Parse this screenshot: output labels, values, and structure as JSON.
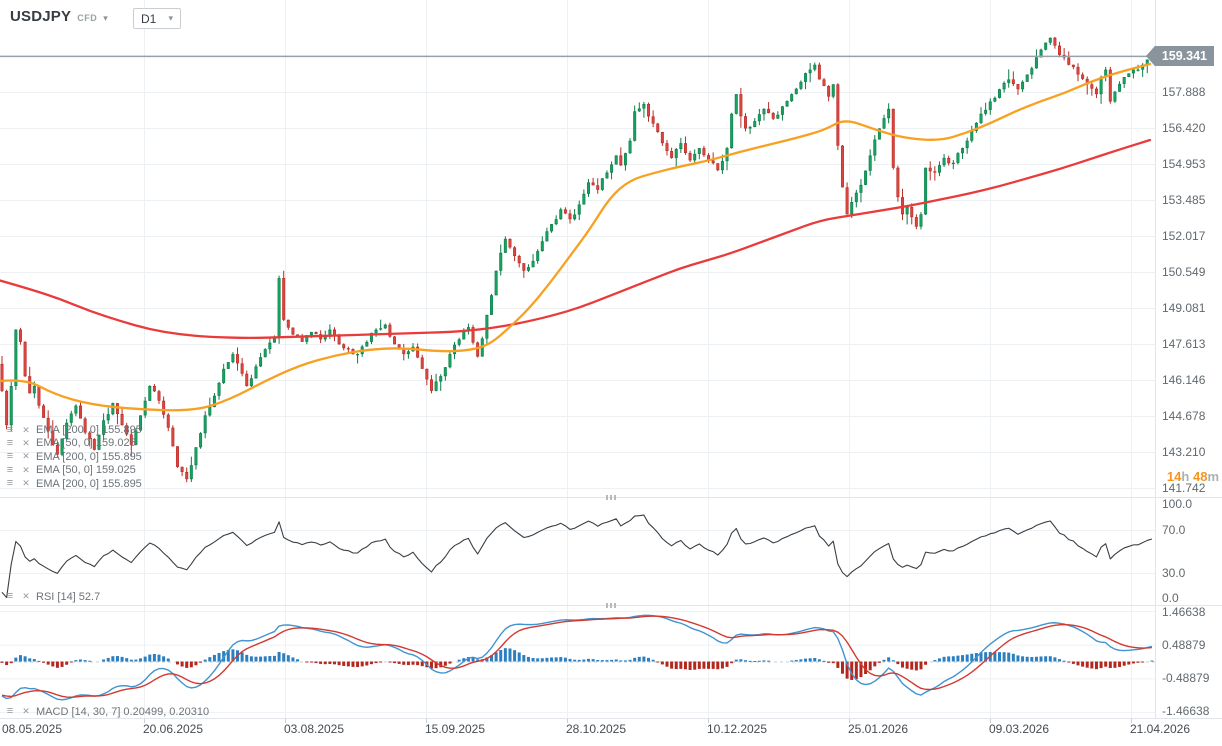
{
  "symbol": {
    "name": "USDJPY",
    "market": "CFD"
  },
  "timeframe": {
    "selected": "D1"
  },
  "icons": {
    "settings": "≡",
    "close": "✕",
    "chevron": "▾"
  },
  "price_axis": {
    "current_price": "159.341",
    "labels": [
      "157.888",
      "156.420",
      "154.953",
      "153.485",
      "152.017",
      "150.549",
      "149.081",
      "147.613",
      "146.146",
      "144.678",
      "143.210",
      "141.742"
    ]
  },
  "rsi_axis": {
    "labels": [
      "100.0",
      "70.0",
      "30.0",
      "0.0"
    ]
  },
  "macd_axis": {
    "labels": [
      "1.46638",
      "0.48879",
      "-0.48879",
      "-1.46638"
    ]
  },
  "date_axis": {
    "labels": [
      "08.05.2025",
      "20.06.2025",
      "03.08.2025",
      "15.09.2025",
      "28.10.2025",
      "10.12.2025",
      "25.01.2026",
      "09.03.2026",
      "21.04.2026"
    ]
  },
  "legend": {
    "overlays": [
      "EMA [200, 0] 155.895",
      "EMA [50, 0] 159.025",
      "EMA [200, 0] 155.895",
      "EMA [50, 0] 159.025",
      "EMA [200, 0] 155.895"
    ],
    "rsi": "RSI [14] 52.7",
    "macd": "MACD [14, 30, 7] 0.20499, 0.20310"
  },
  "countdown": {
    "hours": "14",
    "hours_unit": "h",
    "minutes": "48",
    "minutes_unit": "m"
  },
  "colors": {
    "background": "#ffffff",
    "grid": "#eef1f4",
    "separator": "#e2e6ea",
    "tick": "#c8ced3",
    "candle_up": "#18a061",
    "candle_up_border": "#0d7c49",
    "candle_down": "#d8453f",
    "candle_down_border": "#ba2d28",
    "ema50": "#f7a021",
    "ema200": "#e93b3a",
    "price_line": "#97a1aa",
    "price_badge": "#8a949d",
    "rsi_line": "#3a3f45",
    "macd_hist_pos": "#2b7fc0",
    "macd_hist_neg": "#b5271e",
    "macd_line": "#4094cf",
    "macd_signal": "#d23a31",
    "countdown_accent": "#f7941d",
    "countdown_unit": "#a9b0b6"
  },
  "chart_data": {
    "type": "candlestick",
    "title": "USDJPY CFD, D1",
    "x_labels": [
      "08.05.2025",
      "20.06.2025",
      "03.08.2025",
      "15.09.2025",
      "28.10.2025",
      "10.12.2025",
      "25.01.2026",
      "09.03.2026",
      "21.04.2026"
    ],
    "price_gridlines": [
      157.888,
      156.42,
      154.953,
      153.485,
      152.017,
      150.549,
      149.081,
      147.613,
      146.146,
      144.678,
      143.21,
      141.742
    ],
    "current_price": 159.341,
    "ylim": [
      141.5,
      160.6
    ],
    "n_candles": 250,
    "close_keypoints": [
      [
        0,
        145.7
      ],
      [
        1,
        144.3
      ],
      [
        2,
        145.9
      ],
      [
        3,
        148.2
      ],
      [
        4,
        147.7
      ],
      [
        5,
        146.3
      ],
      [
        6,
        145.6
      ],
      [
        7,
        145.9
      ],
      [
        8,
        145.1
      ],
      [
        9,
        144.6
      ],
      [
        11,
        143.5
      ],
      [
        12,
        143.1
      ],
      [
        14,
        144.4
      ],
      [
        16,
        145.1
      ],
      [
        18,
        144.0
      ],
      [
        20,
        143.3
      ],
      [
        22,
        144.5
      ],
      [
        24,
        145.2
      ],
      [
        26,
        144.3
      ],
      [
        28,
        143.5
      ],
      [
        30,
        144.7
      ],
      [
        32,
        145.9
      ],
      [
        34,
        145.3
      ],
      [
        36,
        144.2
      ],
      [
        38,
        142.6
      ],
      [
        40,
        142.1
      ],
      [
        42,
        143.4
      ],
      [
        44,
        144.7
      ],
      [
        46,
        145.5
      ],
      [
        48,
        146.6
      ],
      [
        50,
        147.2
      ],
      [
        52,
        146.4
      ],
      [
        53,
        145.9
      ],
      [
        55,
        146.7
      ],
      [
        57,
        147.4
      ],
      [
        59,
        147.9
      ],
      [
        60,
        150.3
      ],
      [
        61,
        148.6
      ],
      [
        63,
        148.0
      ],
      [
        65,
        147.7
      ],
      [
        67,
        148.1
      ],
      [
        69,
        147.8
      ],
      [
        71,
        148.2
      ],
      [
        73,
        147.6
      ],
      [
        75,
        147.4
      ],
      [
        77,
        147.2
      ],
      [
        79,
        147.7
      ],
      [
        81,
        148.2
      ],
      [
        83,
        148.4
      ],
      [
        85,
        147.6
      ],
      [
        87,
        147.2
      ],
      [
        89,
        147.5
      ],
      [
        91,
        146.6
      ],
      [
        93,
        145.7
      ],
      [
        95,
        146.3
      ],
      [
        97,
        147.2
      ],
      [
        99,
        147.8
      ],
      [
        101,
        148.3
      ],
      [
        103,
        147.1
      ],
      [
        105,
        148.8
      ],
      [
        107,
        150.6
      ],
      [
        109,
        151.9
      ],
      [
        111,
        151.2
      ],
      [
        113,
        150.6
      ],
      [
        115,
        151.0
      ],
      [
        117,
        151.8
      ],
      [
        119,
        152.5
      ],
      [
        121,
        153.1
      ],
      [
        123,
        152.7
      ],
      [
        125,
        153.3
      ],
      [
        127,
        154.2
      ],
      [
        129,
        153.9
      ],
      [
        131,
        154.6
      ],
      [
        133,
        155.3
      ],
      [
        134,
        154.9
      ],
      [
        136,
        155.9
      ],
      [
        137,
        157.1
      ],
      [
        139,
        157.4
      ],
      [
        141,
        156.6
      ],
      [
        143,
        155.8
      ],
      [
        145,
        155.2
      ],
      [
        147,
        155.8
      ],
      [
        149,
        155.1
      ],
      [
        151,
        155.6
      ],
      [
        153,
        155.1
      ],
      [
        155,
        154.7
      ],
      [
        157,
        155.6
      ],
      [
        158,
        157.0
      ],
      [
        159,
        157.8
      ],
      [
        160,
        156.9
      ],
      [
        161,
        156.4
      ],
      [
        163,
        156.7
      ],
      [
        165,
        157.2
      ],
      [
        167,
        156.8
      ],
      [
        169,
        157.3
      ],
      [
        171,
        157.8
      ],
      [
        173,
        158.3
      ],
      [
        175,
        158.8
      ],
      [
        176,
        159.0
      ],
      [
        177,
        158.4
      ],
      [
        179,
        157.7
      ],
      [
        180,
        158.2
      ],
      [
        181,
        155.7
      ],
      [
        182,
        154.0
      ],
      [
        183,
        152.9
      ],
      [
        184,
        153.4
      ],
      [
        186,
        154.1
      ],
      [
        188,
        155.3
      ],
      [
        190,
        156.4
      ],
      [
        192,
        157.2
      ],
      [
        193,
        154.8
      ],
      [
        194,
        153.6
      ],
      [
        195,
        152.9
      ],
      [
        196,
        153.2
      ],
      [
        198,
        152.4
      ],
      [
        199,
        152.9
      ],
      [
        200,
        154.8
      ],
      [
        202,
        154.6
      ],
      [
        204,
        155.2
      ],
      [
        206,
        155.0
      ],
      [
        208,
        155.6
      ],
      [
        210,
        156.3
      ],
      [
        212,
        157.0
      ],
      [
        214,
        157.5
      ],
      [
        216,
        158.0
      ],
      [
        218,
        158.4
      ],
      [
        220,
        158.0
      ],
      [
        222,
        158.6
      ],
      [
        224,
        159.3
      ],
      [
        226,
        159.9
      ],
      [
        227,
        160.1
      ],
      [
        229,
        159.4
      ],
      [
        231,
        159.0
      ],
      [
        233,
        158.6
      ],
      [
        235,
        158.2
      ],
      [
        237,
        157.8
      ],
      [
        238,
        158.5
      ],
      [
        239,
        158.8
      ],
      [
        240,
        157.5
      ],
      [
        241,
        157.9
      ],
      [
        243,
        158.5
      ],
      [
        245,
        158.8
      ],
      [
        247,
        159.0
      ],
      [
        249,
        159.341
      ]
    ],
    "noise": {
      "seed": 11,
      "amp": 0.12,
      "wick": 0.5
    },
    "overlays": [
      {
        "name": "EMA 50",
        "period": 50,
        "last": 159.025,
        "color": "#f7a021",
        "points": [
          [
            0,
            146.1
          ],
          [
            25,
            146.2
          ],
          [
            55,
            145.55
          ],
          [
            90,
            145.15
          ],
          [
            135,
            144.95
          ],
          [
            195,
            144.88
          ],
          [
            230,
            145.35
          ],
          [
            265,
            146.1
          ],
          [
            300,
            146.75
          ],
          [
            335,
            147.15
          ],
          [
            370,
            147.4
          ],
          [
            405,
            147.45
          ],
          [
            440,
            147.3
          ],
          [
            470,
            147.35
          ],
          [
            490,
            147.6
          ],
          [
            510,
            148.3
          ],
          [
            530,
            149.1
          ],
          [
            550,
            150.1
          ],
          [
            570,
            151.2
          ],
          [
            590,
            152.3
          ],
          [
            610,
            153.6
          ],
          [
            630,
            154.3
          ],
          [
            655,
            154.6
          ],
          [
            680,
            154.85
          ],
          [
            710,
            155.1
          ],
          [
            740,
            155.45
          ],
          [
            770,
            155.75
          ],
          [
            800,
            156.05
          ],
          [
            825,
            156.35
          ],
          [
            845,
            156.8
          ],
          [
            875,
            156.35
          ],
          [
            905,
            156.0
          ],
          [
            940,
            155.9
          ],
          [
            965,
            156.2
          ],
          [
            990,
            156.6
          ],
          [
            1015,
            157.1
          ],
          [
            1040,
            157.5
          ],
          [
            1065,
            157.85
          ],
          [
            1090,
            158.3
          ],
          [
            1115,
            158.65
          ],
          [
            1150,
            159.03
          ]
        ]
      },
      {
        "name": "EMA 200",
        "period": 200,
        "last": 155.895,
        "color": "#e93b3a",
        "points": [
          [
            0,
            150.2
          ],
          [
            30,
            149.85
          ],
          [
            60,
            149.45
          ],
          [
            90,
            148.95
          ],
          [
            120,
            148.55
          ],
          [
            150,
            148.2
          ],
          [
            180,
            148.0
          ],
          [
            210,
            147.9
          ],
          [
            250,
            147.85
          ],
          [
            290,
            147.9
          ],
          [
            330,
            147.95
          ],
          [
            370,
            148.0
          ],
          [
            410,
            148.05
          ],
          [
            450,
            148.1
          ],
          [
            480,
            148.2
          ],
          [
            505,
            148.35
          ],
          [
            530,
            148.55
          ],
          [
            555,
            148.8
          ],
          [
            580,
            149.1
          ],
          [
            605,
            149.5
          ],
          [
            630,
            149.9
          ],
          [
            655,
            150.3
          ],
          [
            680,
            150.7
          ],
          [
            705,
            151.0
          ],
          [
            730,
            151.3
          ],
          [
            760,
            151.75
          ],
          [
            790,
            152.2
          ],
          [
            820,
            152.65
          ],
          [
            850,
            152.85
          ],
          [
            880,
            153.05
          ],
          [
            910,
            153.25
          ],
          [
            940,
            153.5
          ],
          [
            970,
            153.75
          ],
          [
            1000,
            154.05
          ],
          [
            1030,
            154.4
          ],
          [
            1060,
            154.75
          ],
          [
            1090,
            155.15
          ],
          [
            1120,
            155.55
          ],
          [
            1150,
            155.93
          ]
        ]
      }
    ],
    "rsi": {
      "period": 14,
      "last": 52.7,
      "range": [
        0,
        100
      ],
      "gridlines": [
        70,
        30
      ],
      "axis_labels": [
        100.0,
        70.0,
        30.0,
        0.0
      ]
    },
    "macd": {
      "fast": 14,
      "slow": 30,
      "signal_period": 7,
      "last_macd": 0.20499,
      "last_signal": 0.2031,
      "axis_labels": [
        1.46638,
        0.48879,
        -0.48879,
        -1.46638
      ]
    }
  }
}
